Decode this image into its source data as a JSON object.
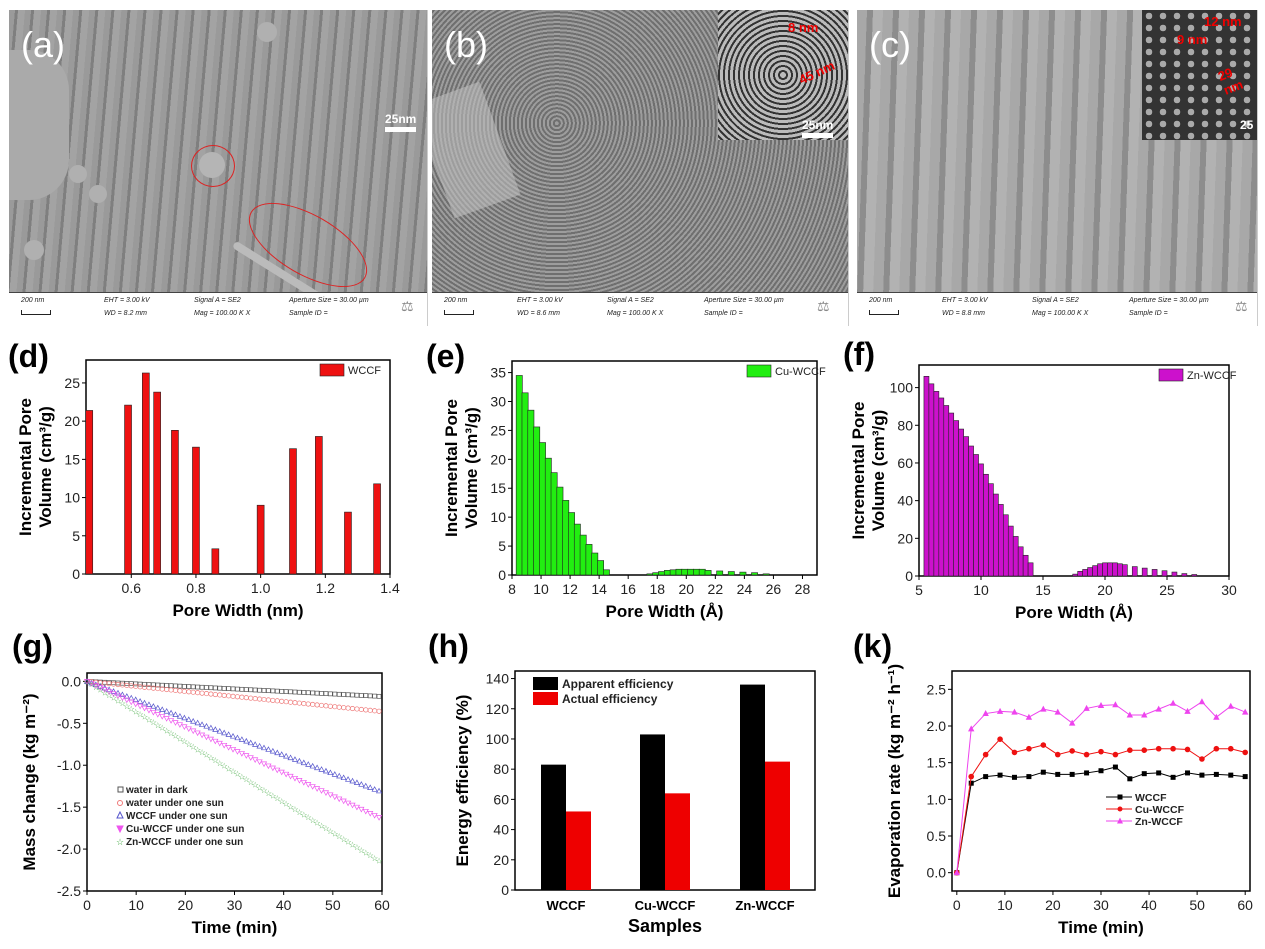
{
  "sem_panels": [
    {
      "label": "(a)",
      "scale_label": "25nm",
      "info": {
        "scale": "200 nm",
        "eht": "EHT = 3.00 kV",
        "wd": "WD = 8.2 mm",
        "signal": "Signal A = SE2",
        "mag": "Mag = 100.00 K X",
        "aperture": "Aperture Size = 30.00 µm",
        "sample": "Sample ID ="
      }
    },
    {
      "label": "(b)",
      "scale_label": "25nm",
      "inset_labels": [
        "8 nm",
        "45 nm"
      ],
      "info": {
        "scale": "200 nm",
        "eht": "EHT = 3.00 kV",
        "wd": "WD = 8.6 mm",
        "signal": "Signal A = SE2",
        "mag": "Mag = 100.00 K X",
        "aperture": "Aperture Size = 30.00 µm",
        "sample": "Sample ID ="
      }
    },
    {
      "label": "(c)",
      "scale_label": "25",
      "inset_labels": [
        "12 nm",
        "9 nm",
        "29 nm"
      ],
      "info": {
        "scale": "200 nm",
        "eht": "EHT = 3.00 kV",
        "wd": "WD = 8.8 mm",
        "signal": "Signal A = SE2",
        "mag": "Mag = 100.00 K X",
        "aperture": "Aperture Size = 30.00 µm",
        "sample": "Sample ID ="
      }
    }
  ],
  "chart_data": [
    {
      "id": "d",
      "panel_label": "(d)",
      "type": "bar",
      "xlabel": "Pore Width (nm)",
      "ylabel_line1": "Incremental Pore",
      "ylabel_line2": "Volume (cm³/g)",
      "xlim": [
        0.46,
        1.4
      ],
      "ylim": [
        0,
        28
      ],
      "xticks": [
        0.6,
        0.8,
        1.0,
        1.2,
        1.4
      ],
      "xtick_labels": [
        "0.6",
        "0.8",
        "1.0",
        "1.2",
        "1.4"
      ],
      "yticks": [
        0,
        5,
        10,
        15,
        20,
        25
      ],
      "ytick_labels": [
        "0",
        "5",
        "10",
        "15",
        "20",
        "25"
      ],
      "legend": "WCCF",
      "legend_position": "top-right",
      "color": "#ee1111",
      "x": [
        0.47,
        0.59,
        0.645,
        0.68,
        0.735,
        0.8,
        0.86,
        1.0,
        1.1,
        1.18,
        1.27,
        1.36
      ],
      "values": [
        21.4,
        22.1,
        26.3,
        23.8,
        18.8,
        16.6,
        3.3,
        9.0,
        16.4,
        18.0,
        8.1,
        11.8
      ]
    },
    {
      "id": "e",
      "panel_label": "(e)",
      "type": "bar",
      "xlabel": "Pore Width (Å)",
      "ylabel_line1": "Incremental Pore",
      "ylabel_line2": "Volume (cm³/g)",
      "xlim": [
        8,
        29
      ],
      "ylim": [
        0,
        37
      ],
      "xticks": [
        8,
        10,
        12,
        14,
        16,
        18,
        20,
        22,
        24,
        26,
        28
      ],
      "xtick_labels": [
        "8",
        "10",
        "12",
        "14",
        "16",
        "18",
        "20",
        "22",
        "24",
        "26",
        "28"
      ],
      "yticks": [
        0,
        5,
        10,
        15,
        20,
        25,
        30,
        35
      ],
      "ytick_labels": [
        "0",
        "5",
        "10",
        "15",
        "20",
        "25",
        "30",
        "35"
      ],
      "legend": "Cu-WCCF",
      "legend_position": "top-right",
      "color": "#22ee11",
      "x": [
        8.5,
        8.9,
        9.3,
        9.7,
        10.1,
        10.5,
        10.9,
        11.3,
        11.7,
        12.1,
        12.5,
        12.9,
        13.3,
        13.7,
        14.1,
        14.5,
        17.5,
        17.9,
        18.3,
        18.7,
        19.1,
        19.5,
        19.9,
        20.3,
        20.7,
        21.1,
        21.5,
        22.3,
        23.1,
        23.9,
        24.7,
        25.5
      ],
      "values": [
        34.5,
        31.5,
        28.5,
        25.6,
        22.9,
        20.2,
        17.7,
        15.2,
        12.9,
        10.8,
        8.8,
        6.9,
        5.3,
        3.8,
        2.5,
        0.9,
        0.2,
        0.4,
        0.6,
        0.8,
        0.9,
        1.0,
        1.0,
        1.0,
        1.0,
        1.0,
        0.8,
        0.7,
        0.6,
        0.5,
        0.4,
        0.2
      ]
    },
    {
      "id": "f",
      "panel_label": "(f)",
      "type": "bar",
      "xlabel": "Pore Width (Å)",
      "ylabel_line1": "Incremental Pore",
      "ylabel_line2": "Volume (cm³/g)",
      "xlim": [
        5,
        30
      ],
      "ylim": [
        0,
        112
      ],
      "xticks": [
        5,
        10,
        15,
        20,
        25,
        30
      ],
      "xtick_labels": [
        "5",
        "10",
        "15",
        "20",
        "25",
        "30"
      ],
      "yticks": [
        0,
        20,
        40,
        60,
        80,
        100
      ],
      "ytick_labels": [
        "0",
        "20",
        "40",
        "60",
        "80",
        "100"
      ],
      "legend": "Zn-WCCF",
      "legend_position": "top-right",
      "color": "#cc11cc",
      "x": [
        5.6,
        6.0,
        6.4,
        6.8,
        7.2,
        7.6,
        8.0,
        8.4,
        8.8,
        9.2,
        9.6,
        10.0,
        10.4,
        10.8,
        11.2,
        11.6,
        12.0,
        12.4,
        12.8,
        13.2,
        13.6,
        14.0,
        17.6,
        18.0,
        18.4,
        18.8,
        19.2,
        19.6,
        20.0,
        20.4,
        20.8,
        21.2,
        21.6,
        22.4,
        23.2,
        24.0,
        24.8,
        25.6,
        26.4,
        27.2
      ],
      "values": [
        106,
        102,
        98,
        94.5,
        90.5,
        86.5,
        82.5,
        78,
        74,
        69,
        64.5,
        59.5,
        54,
        49,
        43.5,
        38,
        32.5,
        26.5,
        21,
        15.5,
        11,
        7,
        1,
        2.5,
        3.5,
        4.5,
        5.5,
        6.5,
        7,
        7,
        7,
        6.5,
        6,
        5,
        4.2,
        3.5,
        2.8,
        2.1,
        1.3,
        0.8
      ]
    },
    {
      "id": "g",
      "panel_label": "(g)",
      "type": "scatter",
      "xlabel": "Time (min)",
      "ylabel": "Mass change (kg m⁻²)",
      "xlim": [
        0,
        60
      ],
      "ylim": [
        -2.5,
        0.1
      ],
      "xticks": [
        0,
        10,
        20,
        30,
        40,
        50,
        60
      ],
      "xtick_labels": [
        "0",
        "10",
        "20",
        "30",
        "40",
        "50",
        "60"
      ],
      "yticks": [
        0,
        -0.5,
        -1,
        -1.5,
        -2,
        -2.5
      ],
      "ytick_labels": [
        "0.0",
        "-0.5",
        "-1.0",
        "-1.5",
        "-2.0",
        "-2.5"
      ],
      "legend_position": "center-left",
      "series": [
        {
          "name": "water in dark",
          "marker": "square",
          "color": "#555555",
          "x": [
            0,
            60
          ],
          "y": [
            0,
            -0.18
          ]
        },
        {
          "name": "water under one sun",
          "marker": "circle",
          "color": "#ee7777",
          "x": [
            0,
            60
          ],
          "y": [
            0,
            -0.36
          ]
        },
        {
          "name": "WCCF under one sun",
          "marker": "triangle-up",
          "color": "#5555cc",
          "x": [
            0,
            60
          ],
          "y": [
            0,
            -1.32
          ]
        },
        {
          "name": "Cu-WCCF under one sun",
          "marker": "triangle-down",
          "color": "#ee55ee",
          "x": [
            0,
            60
          ],
          "y": [
            0,
            -1.64
          ]
        },
        {
          "name": "Zn-WCCF under one sun",
          "marker": "star",
          "color": "#44aa44",
          "x": [
            0,
            60
          ],
          "y": [
            0,
            -2.16
          ]
        }
      ]
    },
    {
      "id": "h",
      "panel_label": "(h)",
      "type": "bar",
      "xlabel": "Samples",
      "ylabel": "Energy efficiency (%)",
      "ylim": [
        0,
        145
      ],
      "yticks": [
        0,
        20,
        40,
        60,
        80,
        100,
        120,
        140
      ],
      "ytick_labels": [
        "0",
        "20",
        "40",
        "60",
        "80",
        "100",
        "120",
        "140"
      ],
      "categories": [
        "WCCF",
        "Cu-WCCF",
        "Zn-WCCF"
      ],
      "legend_position": "top-left",
      "series": [
        {
          "name": "Apparent efficiency",
          "color": "#000000",
          "values": [
            83,
            103,
            136
          ]
        },
        {
          "name": "Actual efficiency",
          "color": "#ee0000",
          "values": [
            52,
            64,
            85
          ]
        }
      ]
    },
    {
      "id": "k",
      "panel_label": "(k)",
      "type": "line",
      "xlabel": "Time (min)",
      "ylabel": "Evaporation rate (kg m⁻² h⁻¹)",
      "xlim": [
        -1,
        61
      ],
      "ylim": [
        -0.25,
        2.75
      ],
      "xticks": [
        0,
        10,
        20,
        30,
        40,
        50,
        60
      ],
      "xtick_labels": [
        "0",
        "10",
        "20",
        "30",
        "40",
        "50",
        "60"
      ],
      "yticks": [
        0,
        0.5,
        1,
        1.5,
        2,
        2.5
      ],
      "ytick_labels": [
        "0.0",
        "0.5",
        "1.0",
        "1.5",
        "2.0",
        "2.5"
      ],
      "legend_position": "center-right",
      "x": [
        0,
        3,
        6,
        9,
        12,
        15,
        18,
        21,
        24,
        27,
        30,
        33,
        36,
        39,
        42,
        45,
        48,
        51,
        54,
        57,
        60
      ],
      "series": [
        {
          "name": "WCCF",
          "marker": "square",
          "color": "#000000",
          "values": [
            0,
            1.22,
            1.31,
            1.33,
            1.3,
            1.31,
            1.37,
            1.34,
            1.34,
            1.36,
            1.39,
            1.44,
            1.28,
            1.35,
            1.36,
            1.3,
            1.36,
            1.33,
            1.34,
            1.33,
            1.31
          ]
        },
        {
          "name": "Cu-WCCF",
          "marker": "circle",
          "color": "#ee1111",
          "values": [
            0,
            1.31,
            1.61,
            1.82,
            1.64,
            1.69,
            1.74,
            1.61,
            1.66,
            1.61,
            1.65,
            1.61,
            1.67,
            1.67,
            1.69,
            1.69,
            1.68,
            1.55,
            1.69,
            1.69,
            1.64
          ]
        },
        {
          "name": "Zn-WCCF",
          "marker": "triangle-up",
          "color": "#ee44ee",
          "values": [
            0,
            1.96,
            2.17,
            2.2,
            2.19,
            2.12,
            2.23,
            2.19,
            2.04,
            2.24,
            2.28,
            2.29,
            2.15,
            2.15,
            2.23,
            2.31,
            2.2,
            2.33,
            2.12,
            2.27,
            2.19
          ]
        }
      ]
    }
  ]
}
